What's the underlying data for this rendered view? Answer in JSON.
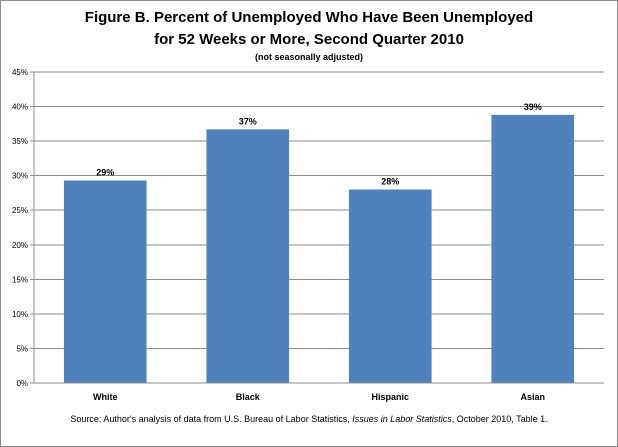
{
  "chart_data": {
    "type": "bar",
    "title_line1": "Figure B. Percent of Unemployed Who Have Been Unemployed",
    "title_line2": "for 52 Weeks or More, Second Quarter 2010",
    "subtitle": "(not seasonally adjusted)",
    "categories": [
      "White",
      "Black",
      "Hispanic",
      "Asian"
    ],
    "values": [
      29.3,
      36.7,
      28.0,
      38.8
    ],
    "data_labels": [
      "29%",
      "37%",
      "28%",
      "39%"
    ],
    "ylim": [
      0,
      45
    ],
    "yticks": [
      0,
      5,
      10,
      15,
      20,
      25,
      30,
      35,
      40,
      45
    ],
    "ytick_labels": [
      "0%",
      "5%",
      "10%",
      "15%",
      "20%",
      "25%",
      "30%",
      "35%",
      "40%",
      "45%"
    ],
    "grid": true,
    "legend": "none",
    "bar_color": "#4f81bd",
    "source_prefix": "Source: Author's analysis of data from U.S. Bureau of Labor Statistics, ",
    "source_italic": "Issues in Labor Statistics",
    "source_suffix": ", October 2010, Table 1."
  }
}
